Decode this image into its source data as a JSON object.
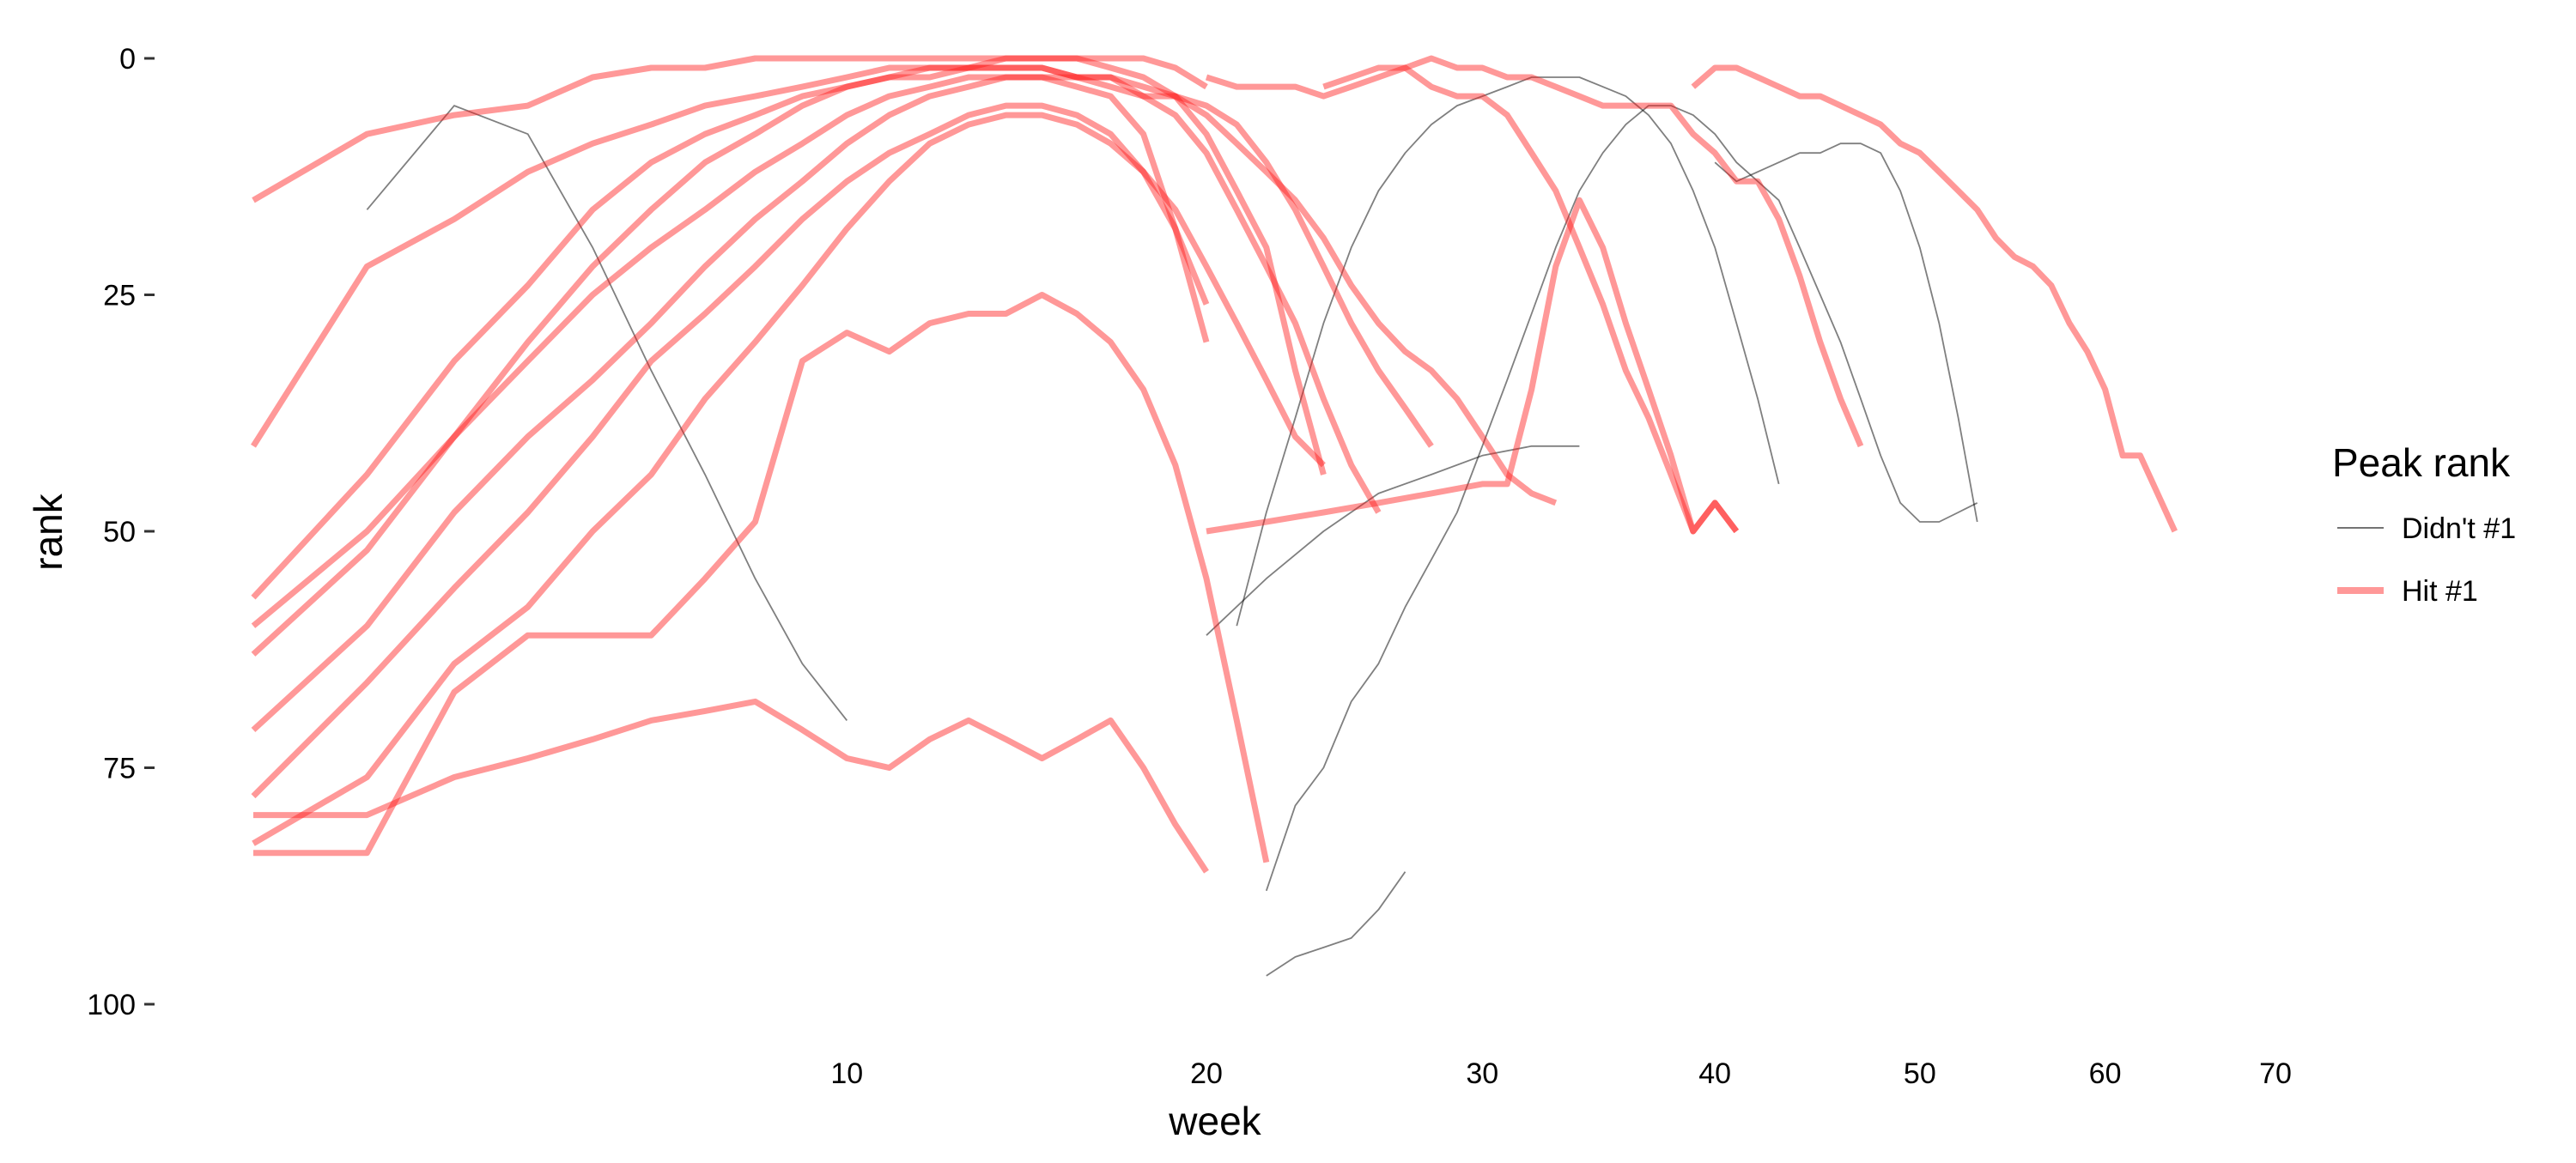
{
  "chart_data": {
    "type": "line",
    "title": "",
    "xlabel": "week",
    "ylabel": "rank",
    "x_scale": "sqrt",
    "y_reversed": true,
    "xlim": [
      1,
      70
    ],
    "ylim": [
      100,
      0
    ],
    "x_ticks": [
      10,
      20,
      30,
      40,
      50,
      60,
      70
    ],
    "y_ticks": [
      0,
      25,
      50,
      75,
      100
    ],
    "grid": false,
    "legend": {
      "title": "Peak rank",
      "placement": "right",
      "entries": [
        "Didn't #1",
        "Hit #1"
      ]
    },
    "colors": {
      "didnt": "#000000",
      "hit": "#ff1a1a"
    },
    "series": [
      {
        "group": "Hit #1",
        "x": [
          1,
          2,
          3,
          4,
          5,
          6,
          7,
          8,
          9,
          10,
          11,
          12,
          13,
          14,
          15,
          16,
          17,
          18,
          19,
          20
        ],
        "y": [
          15,
          8,
          6,
          5,
          2,
          1,
          1,
          0,
          0,
          0,
          0,
          0,
          0,
          0,
          0,
          0,
          0,
          0,
          1,
          3
        ]
      },
      {
        "group": "Hit #1",
        "x": [
          1,
          2,
          3,
          4,
          5,
          6,
          7,
          8,
          9,
          10,
          11,
          12,
          13,
          14,
          15,
          16,
          17,
          18,
          19,
          20,
          21,
          22,
          23,
          24
        ],
        "y": [
          41,
          22,
          17,
          12,
          9,
          7,
          5,
          4,
          3,
          2,
          1,
          1,
          1,
          0,
          0,
          0,
          1,
          2,
          4,
          8,
          14,
          20,
          33,
          44
        ]
      },
      {
        "group": "Hit #1",
        "x": [
          1,
          2,
          3,
          4,
          5,
          6,
          7,
          8,
          9,
          10,
          11,
          12,
          13,
          14,
          15,
          16,
          17,
          18,
          19,
          20,
          21,
          22,
          23,
          24,
          25,
          26
        ],
        "y": [
          57,
          44,
          32,
          24,
          16,
          11,
          8,
          6,
          4,
          3,
          2,
          2,
          1,
          1,
          1,
          2,
          2,
          4,
          6,
          10,
          16,
          22,
          28,
          36,
          43,
          48
        ]
      },
      {
        "group": "Hit #1",
        "x": [
          1,
          2,
          3,
          4,
          5,
          6,
          7,
          8,
          9,
          10,
          11,
          12,
          13,
          14,
          15,
          16,
          17,
          18,
          19,
          20
        ],
        "y": [
          60,
          50,
          40,
          32,
          25,
          20,
          16,
          12,
          9,
          6,
          4,
          3,
          2,
          2,
          2,
          3,
          4,
          8,
          18,
          30
        ]
      },
      {
        "group": "Hit #1",
        "x": [
          1,
          2,
          3,
          4,
          5,
          6,
          7,
          8,
          9,
          10,
          11,
          12,
          13,
          14,
          15,
          16,
          17,
          18,
          19,
          20,
          21,
          22,
          23,
          24,
          25,
          26,
          27,
          28
        ],
        "y": [
          71,
          60,
          48,
          40,
          34,
          28,
          22,
          17,
          13,
          9,
          6,
          4,
          3,
          2,
          2,
          2,
          3,
          4,
          4,
          5,
          7,
          11,
          16,
          22,
          28,
          33,
          37,
          41
        ]
      },
      {
        "group": "Hit #1",
        "x": [
          1,
          2,
          3,
          4,
          5,
          6,
          7,
          8,
          9,
          10,
          11,
          12,
          13,
          14,
          15,
          16,
          17,
          18,
          19,
          20
        ],
        "y": [
          78,
          66,
          56,
          48,
          40,
          32,
          27,
          22,
          17,
          13,
          10,
          8,
          6,
          5,
          5,
          6,
          8,
          12,
          18,
          26
        ]
      },
      {
        "group": "Hit #1",
        "x": [
          1,
          2,
          3,
          4,
          5,
          6,
          7,
          8,
          9,
          10,
          11,
          12,
          13,
          14,
          15,
          16,
          17,
          18,
          19,
          20,
          21,
          22,
          23,
          24
        ],
        "y": [
          83,
          76,
          64,
          58,
          50,
          44,
          36,
          30,
          24,
          18,
          13,
          9,
          7,
          6,
          6,
          7,
          9,
          12,
          16,
          22,
          28,
          34,
          40,
          43
        ]
      },
      {
        "group": "Hit #1",
        "x": [
          1,
          2,
          3,
          4,
          5,
          6,
          7,
          8,
          9,
          10,
          11,
          12,
          13,
          14,
          15,
          16,
          17,
          18,
          19,
          20,
          21,
          22
        ],
        "y": [
          84,
          84,
          67,
          61,
          61,
          61,
          55,
          49,
          32,
          29,
          31,
          28,
          27,
          27,
          25,
          27,
          30,
          35,
          43,
          55,
          70,
          85
        ]
      },
      {
        "group": "Hit #1",
        "x": [
          1,
          2,
          3,
          4,
          5,
          6,
          7,
          8,
          9,
          10,
          11,
          12,
          13,
          14,
          15,
          16,
          17,
          18,
          19,
          20
        ],
        "y": [
          80,
          80,
          76,
          74,
          72,
          70,
          69,
          68,
          71,
          74,
          75,
          72,
          70,
          72,
          74,
          72,
          70,
          75,
          81,
          86
        ]
      },
      {
        "group": "Hit #1",
        "x": [
          1,
          2,
          3,
          4,
          5,
          6,
          7,
          8,
          9,
          10,
          11,
          12,
          13,
          14,
          15,
          16,
          17,
          18,
          19,
          20,
          21,
          22,
          23,
          24,
          25,
          26,
          27,
          28,
          29,
          30,
          31,
          32,
          33
        ],
        "y": [
          63,
          52,
          40,
          30,
          22,
          16,
          11,
          8,
          5,
          3,
          2,
          1,
          1,
          1,
          1,
          2,
          2,
          3,
          4,
          6,
          9,
          12,
          15,
          19,
          24,
          28,
          31,
          33,
          36,
          40,
          44,
          46,
          47
        ]
      },
      {
        "group": "Hit #1",
        "x": [
          20,
          22,
          24,
          26,
          28,
          30,
          31,
          32,
          33,
          34,
          35,
          36,
          37,
          38,
          39,
          40,
          41
        ],
        "y": [
          50,
          49,
          48,
          47,
          46,
          45,
          45,
          35,
          22,
          15,
          20,
          28,
          35,
          42,
          50,
          47,
          50
        ]
      },
      {
        "group": "Hit #1",
        "x": [
          20,
          21,
          22,
          23,
          24,
          25,
          26,
          27,
          28,
          29,
          30,
          31,
          32,
          33,
          34,
          35,
          36,
          37,
          38,
          39,
          40,
          41,
          42,
          43,
          44,
          45,
          46,
          47
        ],
        "y": [
          2,
          3,
          3,
          3,
          4,
          3,
          2,
          1,
          0,
          1,
          1,
          2,
          2,
          3,
          4,
          5,
          5,
          5,
          5,
          8,
          10,
          13,
          13,
          17,
          23,
          30,
          36,
          41
        ]
      },
      {
        "group": "Hit #1",
        "x": [
          24,
          25,
          26,
          27,
          28,
          29,
          30,
          31,
          32,
          33,
          34,
          35,
          36,
          37,
          38,
          39,
          40,
          41
        ],
        "y": [
          3,
          2,
          1,
          1,
          3,
          4,
          4,
          6,
          10,
          14,
          20,
          26,
          33,
          38,
          44,
          50,
          47,
          50
        ]
      },
      {
        "group": "Hit #1",
        "x": [
          39,
          40,
          41,
          42,
          43,
          44,
          45,
          46,
          47,
          48,
          49,
          50,
          51,
          52,
          53,
          54,
          55,
          56,
          57,
          58,
          59,
          60,
          61,
          62,
          63,
          64
        ],
        "y": [
          3,
          1,
          1,
          2,
          3,
          4,
          4,
          5,
          6,
          7,
          9,
          10,
          12,
          14,
          16,
          19,
          21,
          22,
          24,
          28,
          31,
          35,
          42,
          42,
          46,
          50
        ]
      },
      {
        "group": "Didn't #1",
        "x": [
          2,
          3,
          4,
          5,
          6,
          7,
          8,
          9,
          10
        ],
        "y": [
          16,
          5,
          8,
          20,
          33,
          44,
          55,
          64,
          70
        ]
      },
      {
        "group": "Didn't #1",
        "x": [
          21,
          22,
          23,
          24,
          25,
          26,
          27,
          28,
          29,
          30,
          31,
          32,
          33,
          34,
          35,
          36,
          37,
          38,
          39,
          40,
          41,
          42,
          43
        ],
        "y": [
          60,
          48,
          38,
          28,
          20,
          14,
          10,
          7,
          5,
          4,
          3,
          2,
          2,
          2,
          3,
          4,
          6,
          9,
          14,
          20,
          28,
          36,
          45
        ]
      },
      {
        "group": "Didn't #1",
        "x": [
          22,
          23,
          24,
          25,
          26,
          27,
          28,
          29,
          30,
          31,
          32,
          33,
          34,
          35,
          36,
          37,
          38,
          39,
          40,
          41,
          42,
          43,
          44,
          45,
          46,
          47,
          48,
          49,
          50,
          51,
          52,
          53
        ],
        "y": [
          88,
          79,
          75,
          68,
          64,
          58,
          53,
          48,
          41,
          34,
          27,
          20,
          14,
          10,
          7,
          5,
          5,
          6,
          8,
          11,
          13,
          15,
          20,
          25,
          30,
          36,
          42,
          47,
          49,
          49,
          48,
          47
        ]
      },
      {
        "group": "Didn't #1",
        "x": [
          22,
          23,
          24,
          25,
          26,
          27
        ],
        "y": [
          97,
          95,
          94,
          93,
          90,
          86
        ]
      },
      {
        "group": "Didn't #1",
        "x": [
          40,
          41,
          42,
          43,
          44,
          45,
          46,
          47,
          48,
          49,
          50,
          51,
          52,
          53
        ],
        "y": [
          11,
          13,
          12,
          11,
          10,
          10,
          9,
          9,
          10,
          14,
          20,
          28,
          38,
          49
        ]
      },
      {
        "group": "Didn't #1",
        "x": [
          20,
          22,
          24,
          26,
          28,
          30,
          32,
          34
        ],
        "y": [
          61,
          55,
          50,
          46,
          44,
          42,
          41,
          41
        ]
      }
    ]
  }
}
